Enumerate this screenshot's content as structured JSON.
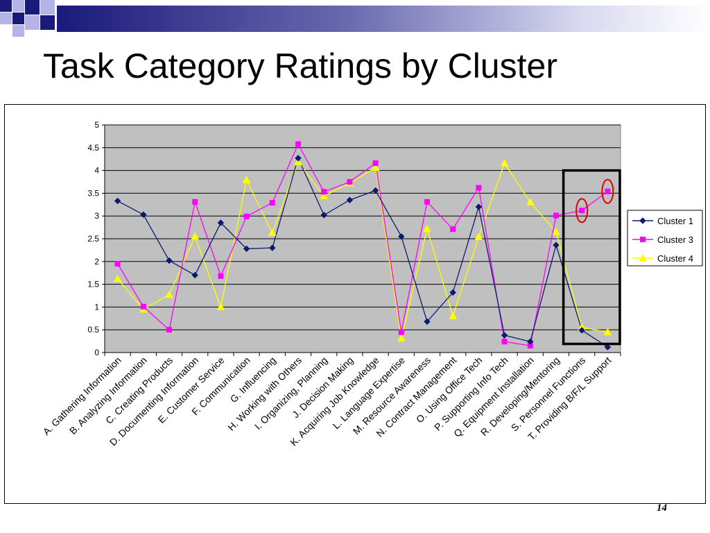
{
  "slide": {
    "title": "Task Category Ratings by Cluster",
    "page_number": "14"
  },
  "colors": {
    "deco_dark": "#1a1a7a",
    "deco_light": "#b4b4e6",
    "plot_bg": "#c0c0c0"
  },
  "chart_data": {
    "type": "line",
    "ylim": [
      0,
      5
    ],
    "yticks": [
      "0",
      "0.5",
      "1",
      "1.5",
      "2",
      "2.5",
      "3",
      "3.5",
      "4",
      "4.5",
      "5"
    ],
    "grid": true,
    "legend_position": "right",
    "categories": [
      "A. Gathering Information",
      "B. Analyzing Information",
      "C. Creating Products",
      "D. Documenting Information",
      "E. Customer Service",
      "F. Communication",
      "G. Influencing",
      "H. Working with Others",
      "I. Organizing, Planning",
      "J. Decision Making",
      "K. Acquiring Job Knowledge",
      "L. Language Expertise",
      "M. Resource Awareness",
      "N. Contract Management",
      "O. Using Office Tech",
      "P. Supporting Info Tech",
      "Q. Equipment Installation",
      "R. Developing/Mentoring",
      "S. Personnel Functions",
      "T. Providing B/F/L Support"
    ],
    "series": [
      {
        "name": "Cluster 1",
        "color": "#0a1a6e",
        "marker": "diamond",
        "values": [
          3.33,
          3.03,
          2.02,
          1.7,
          2.85,
          2.28,
          2.3,
          4.27,
          3.02,
          3.35,
          3.56,
          2.55,
          0.68,
          1.32,
          3.2,
          0.38,
          0.24,
          2.36,
          0.49,
          0.12
        ]
      },
      {
        "name": "Cluster 3",
        "color": "#ff00ff",
        "marker": "square",
        "values": [
          1.95,
          1.01,
          0.5,
          3.31,
          1.68,
          2.99,
          3.29,
          4.58,
          3.53,
          3.75,
          4.16,
          0.45,
          3.31,
          2.71,
          3.62,
          0.24,
          0.15,
          3.01,
          3.12,
          3.54
        ]
      },
      {
        "name": "Cluster 4",
        "color": "#ffff00",
        "marker": "triangle",
        "values": [
          1.62,
          0.95,
          1.27,
          2.55,
          1.0,
          3.79,
          2.63,
          4.18,
          3.44,
          3.72,
          4.06,
          0.31,
          2.72,
          0.8,
          2.54,
          4.16,
          3.3,
          2.65,
          0.55,
          0.45
        ]
      }
    ],
    "highlight_annotation": {
      "box_categories": [
        "S. Personnel Functions",
        "T. Providing B/F/L Support"
      ],
      "circled_points": [
        {
          "series": "Cluster 3",
          "category": "S. Personnel Functions"
        },
        {
          "series": "Cluster 3",
          "category": "T. Providing B/F/L Support"
        }
      ],
      "circle_color": "#e00000"
    }
  }
}
